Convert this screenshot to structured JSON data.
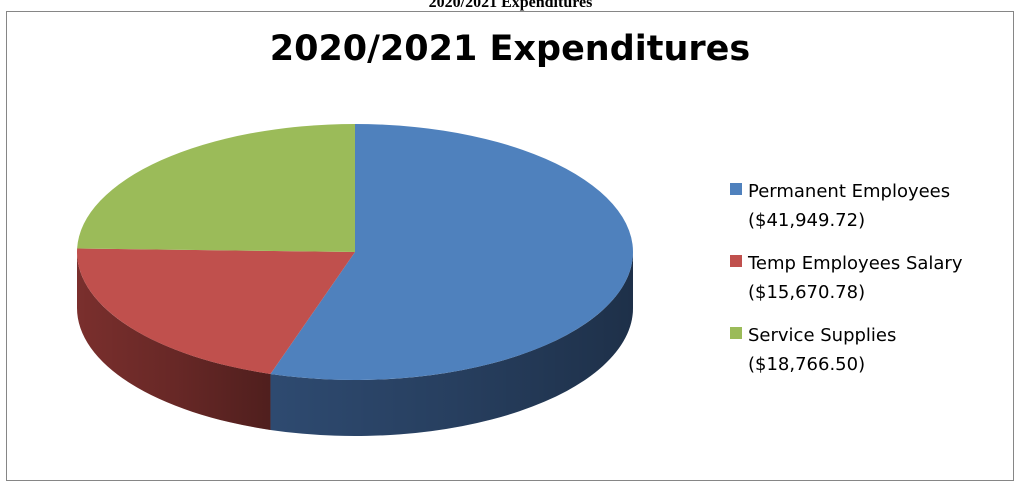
{
  "page": {
    "caption": "2020/2021 Expenditures"
  },
  "chart_data": {
    "type": "pie",
    "title": "2020/2021 Expenditures",
    "slices": [
      {
        "label": "Permanent Employees",
        "amount_label": "($41,949.72)",
        "value": 41949.72,
        "color": "#4F81BD",
        "side_color": "#2E4A70"
      },
      {
        "label": "Temp Employees Salary",
        "amount_label": "($15,670.78)",
        "value": 15670.78,
        "color": "#C0504D",
        "side_color": "#7A2F2D"
      },
      {
        "label": "Service Supplies",
        "amount_label": "($18,766.50)",
        "value": 18766.5,
        "color": "#9BBB59",
        "side_color": "#5E7436"
      }
    ],
    "style": "3d",
    "legend_position": "right"
  }
}
